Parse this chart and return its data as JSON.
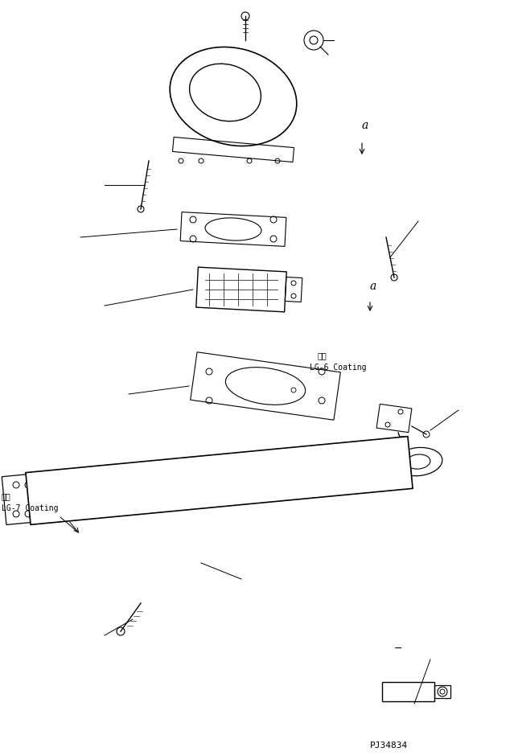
{
  "bg_color": "#ffffff",
  "line_color": "#000000",
  "fig_width": 6.39,
  "fig_height": 9.4,
  "part_id": "PJ34834",
  "label_lg6": "LG-6 Coating",
  "label_lg6_jp": "塗布",
  "label_lg7": "LG-7 Coating",
  "label_lg7_jp": "塗布",
  "label_a1": "a",
  "label_a2": "a"
}
